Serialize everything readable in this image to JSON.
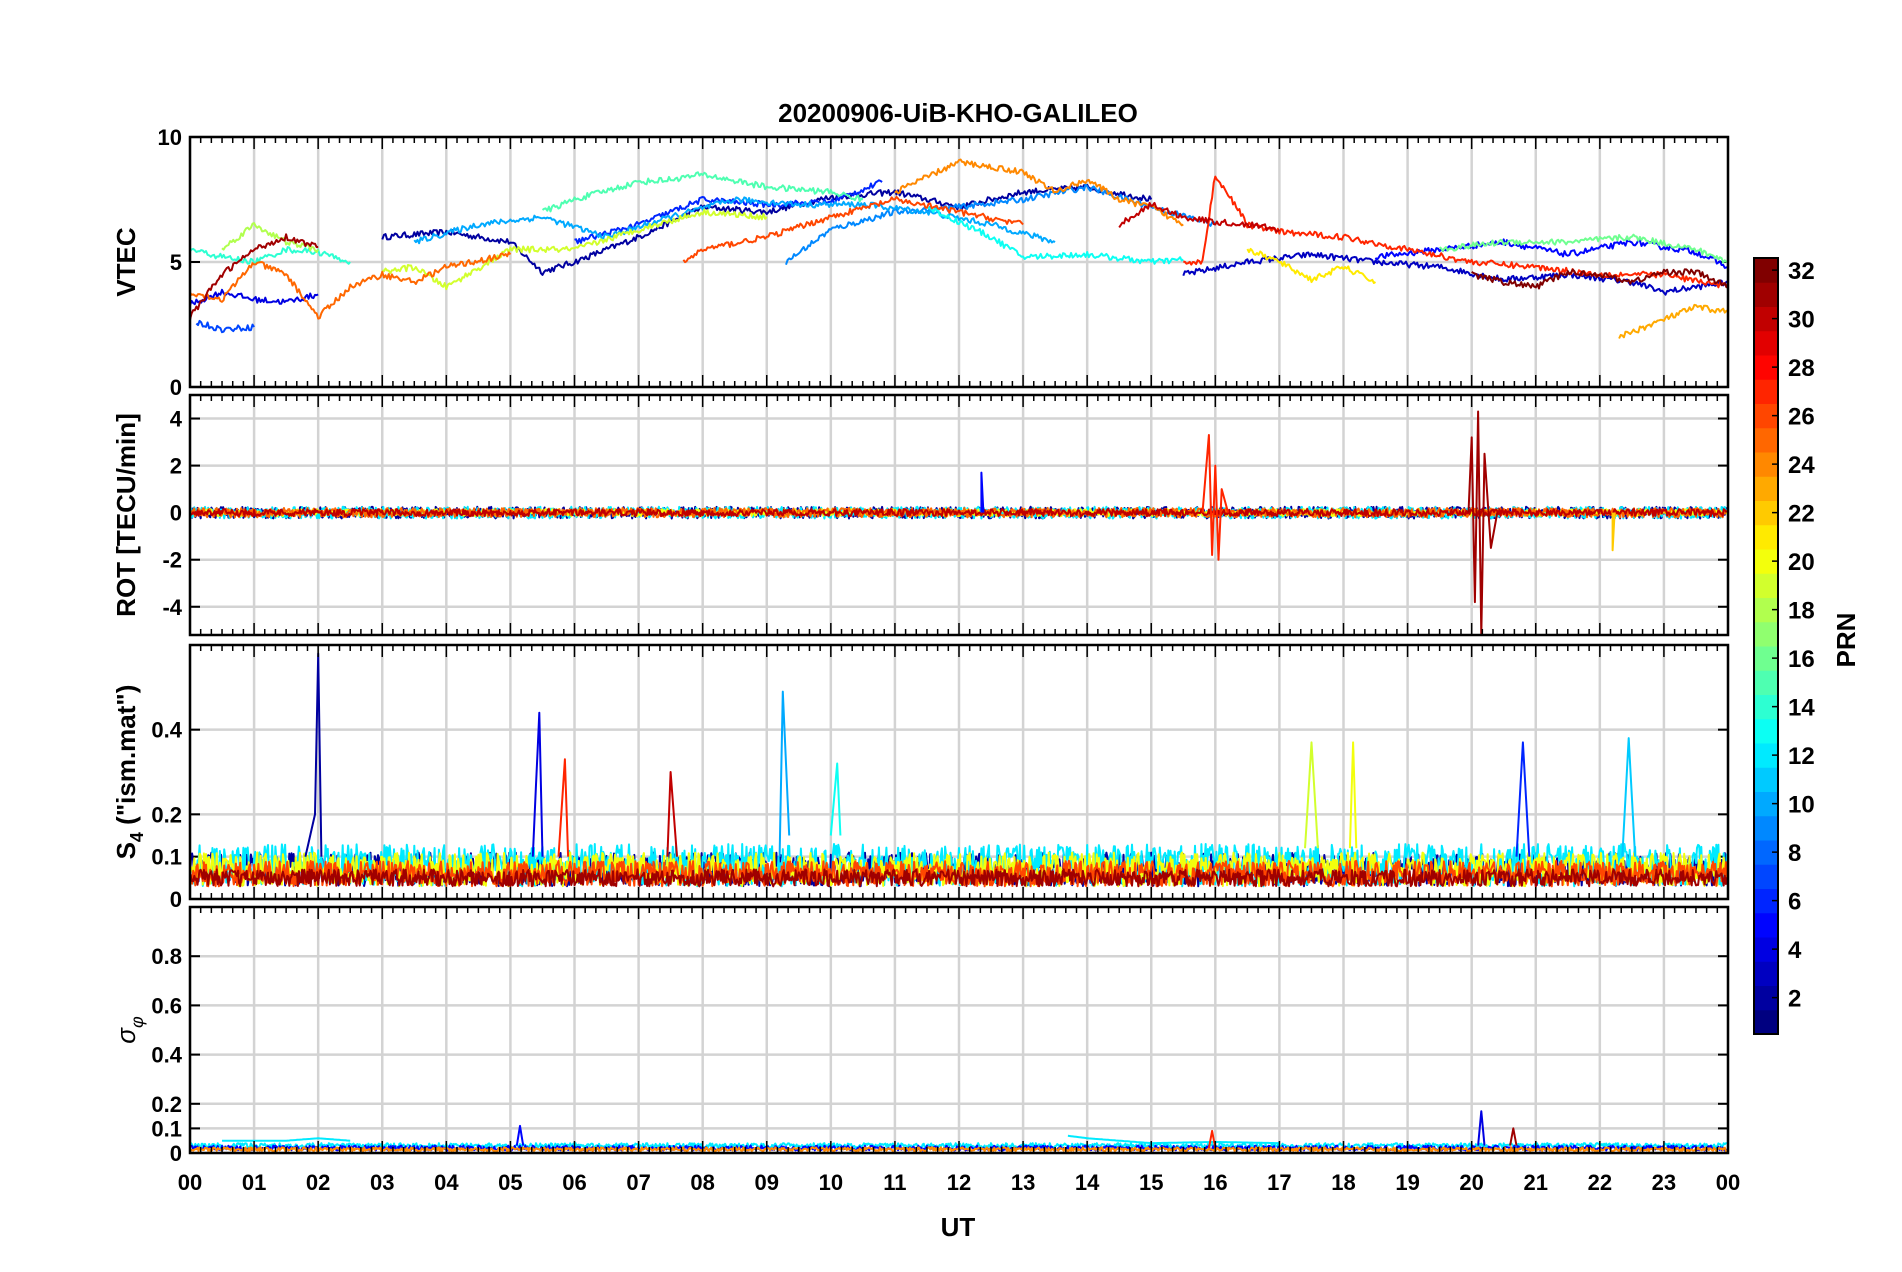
{
  "chart_data": {
    "type": "line",
    "title": "20200906-UiB-KHO-GALILEO",
    "xlabel": "UT",
    "x_range": [
      0,
      24
    ],
    "x_tick_labels": [
      "00",
      "01",
      "02",
      "03",
      "04",
      "05",
      "06",
      "07",
      "08",
      "09",
      "10",
      "11",
      "12",
      "13",
      "14",
      "15",
      "16",
      "17",
      "18",
      "19",
      "20",
      "21",
      "22",
      "23",
      "00"
    ],
    "grid": true,
    "colormap": "jet",
    "colorbar": {
      "label": "PRN",
      "range": [
        1,
        32
      ],
      "placement": "right",
      "tick_labels": [
        "2",
        "4",
        "6",
        "8",
        "10",
        "12",
        "14",
        "16",
        "18",
        "20",
        "22",
        "24",
        "26",
        "28",
        "30",
        "32"
      ]
    },
    "panels": [
      {
        "ylabel": "VTEC",
        "ylim": [
          0,
          10
        ],
        "y_tick_labels": [
          "0",
          "5",
          "10"
        ],
        "series": [
          {
            "prn": 2,
            "x": [
              3.0,
              4.0,
              5.0,
              5.5,
              6.0,
              7.0,
              8.0,
              9.0,
              10.0,
              11.0,
              12.0,
              13.0,
              14.0,
              15.0
            ],
            "y": [
              6.0,
              6.2,
              5.8,
              4.6,
              5.0,
              6.0,
              7.2,
              7.0,
              7.6,
              7.8,
              7.2,
              7.8,
              8.0,
              7.5
            ]
          },
          {
            "prn": 3,
            "x": [
              15.5,
              16.5,
              17.5,
              18.5,
              19.5,
              20.5,
              21.5,
              22.5,
              23.0,
              24.0
            ],
            "y": [
              4.5,
              5.0,
              5.3,
              5.0,
              4.8,
              4.3,
              4.5,
              4.2,
              3.8,
              4.2
            ]
          },
          {
            "prn": 4,
            "x": [
              0.0,
              0.5,
              1.0,
              1.5,
              2.0
            ],
            "y": [
              3.3,
              3.8,
              3.5,
              3.4,
              3.7
            ]
          },
          {
            "prn": 5,
            "x": [
              18.5,
              19.5,
              20.5,
              21.5,
              22.5,
              23.5,
              24.0
            ],
            "y": [
              5.2,
              5.5,
              5.8,
              5.3,
              5.8,
              5.4,
              4.8
            ]
          },
          {
            "prn": 6,
            "x": [
              6.0,
              7.0,
              8.0,
              9.0,
              10.0,
              10.8
            ],
            "y": [
              5.8,
              6.5,
              7.5,
              7.3,
              7.4,
              8.2
            ]
          },
          {
            "prn": 7,
            "x": [
              0.1,
              0.5,
              1.0
            ],
            "y": [
              2.6,
              2.3,
              2.4
            ]
          },
          {
            "prn": 9,
            "x": [
              9.3,
              10.0,
              11.0,
              12.0,
              13.0,
              14.0,
              15.0,
              16.0
            ],
            "y": [
              5.0,
              6.3,
              7.0,
              7.2,
              7.5,
              8.0,
              7.2,
              6.5
            ]
          },
          {
            "prn": 10,
            "x": [
              3.5,
              4.5,
              5.5,
              6.5,
              7.5,
              8.5,
              9.5,
              10.5,
              11.5,
              12.5,
              13.5
            ],
            "y": [
              5.8,
              6.5,
              6.8,
              6.0,
              6.8,
              7.5,
              7.3,
              7.3,
              7.0,
              6.5,
              5.8
            ]
          },
          {
            "prn": 13,
            "x": [
              11.5,
              12.5,
              13.0,
              14.0,
              15.0,
              15.5
            ],
            "y": [
              7.2,
              6.0,
              5.2,
              5.3,
              5.0,
              5.1
            ]
          },
          {
            "prn": 14,
            "x": [
              0.0,
              0.5,
              1.0,
              1.5,
              2.0,
              2.5
            ],
            "y": [
              5.5,
              5.2,
              5.0,
              5.5,
              5.4,
              5.0
            ]
          },
          {
            "prn": 15,
            "x": [
              5.5,
              6.0,
              7.0,
              7.5,
              8.0,
              9.0,
              10.0,
              10.5
            ],
            "y": [
              7.0,
              7.5,
              8.2,
              8.3,
              8.5,
              8.0,
              7.8,
              7.5
            ]
          },
          {
            "prn": 16,
            "x": [
              19.5,
              20.5,
              21.5,
              22.5,
              23.5,
              24.0
            ],
            "y": [
              5.5,
              5.8,
              5.8,
              6.0,
              5.5,
              5.0
            ]
          },
          {
            "prn": 18,
            "x": [
              0.5,
              1.0,
              1.5,
              2.0
            ],
            "y": [
              5.5,
              6.5,
              5.8,
              5.5
            ]
          },
          {
            "prn": 19,
            "x": [
              3.0,
              3.5,
              4.0,
              5.0,
              6.0,
              7.0,
              8.0,
              9.0
            ],
            "y": [
              4.6,
              4.8,
              4.0,
              5.5,
              5.5,
              6.3,
              7.0,
              6.8
            ]
          },
          {
            "prn": 21,
            "x": [
              16.5,
              17.0,
              17.5,
              18.0,
              18.5
            ],
            "y": [
              5.5,
              5.0,
              4.3,
              4.8,
              4.2
            ]
          },
          {
            "prn": 23,
            "x": [
              22.3,
              23.0,
              23.5,
              24.0
            ],
            "y": [
              2.0,
              2.7,
              3.2,
              3.0
            ]
          },
          {
            "prn": 24,
            "x": [
              11.0,
              12.0,
              12.5,
              13.0,
              13.5,
              14.0,
              14.5,
              15.0,
              15.5
            ],
            "y": [
              7.8,
              9.0,
              8.8,
              8.6,
              7.8,
              8.3,
              7.5,
              7.2,
              6.5
            ]
          },
          {
            "prn": 25,
            "x": [
              0.0,
              0.5,
              1.0,
              1.5,
              2.0,
              2.5,
              3.0,
              3.5,
              4.0,
              5.0
            ],
            "y": [
              3.8,
              3.5,
              5.0,
              4.5,
              2.8,
              4.0,
              4.5,
              4.2,
              4.8,
              5.3
            ]
          },
          {
            "prn": 26,
            "x": [
              7.7,
              8.0,
              9.0,
              10.0,
              11.0,
              12.0,
              13.0
            ],
            "y": [
              5.0,
              5.5,
              6.0,
              6.8,
              7.5,
              7.0,
              6.5
            ]
          },
          {
            "prn": 27,
            "x": [
              15.5,
              15.8,
              16.0,
              16.5,
              17.0,
              18.0,
              19.0,
              20.0,
              21.0,
              22.0,
              23.0,
              24.0
            ],
            "y": [
              5.0,
              5.0,
              8.5,
              6.5,
              6.2,
              6.0,
              5.5,
              5.0,
              4.8,
              4.5,
              4.5,
              4.0
            ]
          },
          {
            "prn": 30,
            "x": [
              14.5,
              15.0,
              15.5,
              16.0,
              16.5,
              17.0
            ],
            "y": [
              6.5,
              7.3,
              6.8,
              6.6,
              6.5,
              6.3
            ]
          },
          {
            "prn": 31,
            "x": [
              0.0,
              0.5,
              1.0,
              1.5,
              2.0
            ],
            "y": [
              2.8,
              4.5,
              5.5,
              6.0,
              5.6
            ]
          },
          {
            "prn": 32,
            "x": [
              20.0,
              20.5,
              21.0,
              21.5,
              22.0,
              22.5,
              23.0,
              23.5,
              24.0
            ],
            "y": [
              4.5,
              4.2,
              4.0,
              4.6,
              4.5,
              4.2,
              4.6,
              4.6,
              4.0
            ]
          }
        ]
      },
      {
        "ylabel": "ROT [TECU/min]",
        "ylim": [
          -5.2,
          5
        ],
        "y_tick_labels": [
          "-4",
          "-2",
          "0",
          "2",
          "4"
        ],
        "series": [
          {
            "prn": 2,
            "x": [
              0.0,
              24.0
            ],
            "y": [
              0.0,
              0.0
            ],
            "noise": 0.25
          },
          {
            "prn": 12,
            "x": [
              0.0,
              24.0
            ],
            "y": [
              0.0,
              0.0
            ],
            "noise": 0.25
          },
          {
            "prn": 20,
            "x": [
              0.0,
              24.0
            ],
            "y": [
              0.0,
              0.0
            ],
            "noise": 0.15
          },
          {
            "prn": 25,
            "x": [
              0.0,
              24.0
            ],
            "y": [
              0.0,
              0.0
            ],
            "noise": 0.2
          },
          {
            "prn": 30,
            "x": [
              0.0,
              24.0
            ],
            "y": [
              0.0,
              0.0
            ],
            "noise": 0.15
          },
          {
            "prn": 27,
            "x": [
              15.8,
              15.9,
              15.95,
              16.0,
              16.05,
              16.1,
              16.2
            ],
            "y": [
              0.0,
              3.3,
              -1.8,
              2.0,
              -2.0,
              1.0,
              0.0
            ]
          },
          {
            "prn": 31,
            "x": [
              19.95,
              20.0,
              20.05,
              20.1,
              20.15,
              20.2,
              20.3,
              20.4
            ],
            "y": [
              0.0,
              3.2,
              -3.8,
              4.3,
              -5.2,
              2.5,
              -1.5,
              0.0
            ]
          },
          {
            "prn": 5,
            "x": [
              12.35
            ],
            "y": [
              1.7
            ]
          },
          {
            "prn": 22,
            "x": [
              22.2
            ],
            "y": [
              -1.6
            ]
          }
        ]
      },
      {
        "ylabel": "S4 (\"ism.mat\")",
        "ylabel_main": "S",
        "ylabel_sub": "4",
        "ylabel_rest": " (\"ism.mat\")",
        "ylim": [
          0,
          0.6
        ],
        "y_tick_labels": [
          "0",
          "0.1",
          "0.2",
          "0.4"
        ],
        "series": [
          {
            "prn": 2,
            "x": [
              0.0,
              24.0
            ],
            "y": [
              0.07,
              0.07
            ],
            "noise": 0.04
          },
          {
            "prn": 12,
            "x": [
              0.0,
              24.0
            ],
            "y": [
              0.08,
              0.08
            ],
            "noise": 0.05
          },
          {
            "prn": 20,
            "x": [
              0.0,
              24.0
            ],
            "y": [
              0.07,
              0.07
            ],
            "noise": 0.04
          },
          {
            "prn": 26,
            "x": [
              0.0,
              24.0
            ],
            "y": [
              0.06,
              0.06
            ],
            "noise": 0.03
          },
          {
            "prn": 31,
            "x": [
              0.0,
              24.0
            ],
            "y": [
              0.05,
              0.05
            ],
            "noise": 0.02
          },
          {
            "prn": 2,
            "x": [
              1.8,
              1.95,
              2.0,
              2.05
            ],
            "y": [
              0.1,
              0.2,
              0.58,
              0.1
            ]
          },
          {
            "prn": 4,
            "x": [
              5.35,
              5.45,
              5.5
            ],
            "y": [
              0.1,
              0.44,
              0.1
            ]
          },
          {
            "prn": 27,
            "x": [
              5.75,
              5.85,
              5.9
            ],
            "y": [
              0.1,
              0.33,
              0.1
            ]
          },
          {
            "prn": 10,
            "x": [
              9.2,
              9.25,
              9.35
            ],
            "y": [
              0.1,
              0.49,
              0.15
            ]
          },
          {
            "prn": 19,
            "x": [
              17.4,
              17.5,
              17.6
            ],
            "y": [
              0.12,
              0.37,
              0.12
            ]
          },
          {
            "prn": 20,
            "x": [
              18.1,
              18.15,
              18.2
            ],
            "y": [
              0.12,
              0.37,
              0.12
            ]
          },
          {
            "prn": 6,
            "x": [
              20.7,
              20.8,
              20.9
            ],
            "y": [
              0.1,
              0.37,
              0.1
            ]
          },
          {
            "prn": 11,
            "x": [
              22.35,
              22.45,
              22.55
            ],
            "y": [
              0.1,
              0.38,
              0.1
            ]
          },
          {
            "prn": 30,
            "x": [
              7.45,
              7.5,
              7.6
            ],
            "y": [
              0.1,
              0.3,
              0.1
            ]
          },
          {
            "prn": 13,
            "x": [
              10.0,
              10.1,
              10.15
            ],
            "y": [
              0.15,
              0.32,
              0.15
            ]
          }
        ]
      },
      {
        "ylabel": "σφ",
        "ylabel_main": "σ",
        "ylabel_sub": "φ",
        "ylim": [
          0,
          1
        ],
        "y_tick_labels": [
          "0",
          "0.1",
          "0.2",
          "0.4",
          "0.6",
          "0.8"
        ],
        "series": [
          {
            "prn": 12,
            "x": [
              0.0,
              24.0
            ],
            "y": [
              0.03,
              0.03
            ],
            "noise": 0.01
          },
          {
            "prn": 5,
            "x": [
              0.0,
              24.0
            ],
            "y": [
              0.02,
              0.02
            ],
            "noise": 0.01
          },
          {
            "prn": 24,
            "x": [
              0.0,
              24.0
            ],
            "y": [
              0.015,
              0.015
            ],
            "noise": 0.008
          },
          {
            "prn": 12,
            "x": [
              0.5,
              1.0,
              1.5,
              2.0,
              2.5
            ],
            "y": [
              0.05,
              0.05,
              0.05,
              0.06,
              0.05
            ]
          },
          {
            "prn": 12,
            "x": [
              13.7,
              14.0,
              14.5,
              15.0,
              16.0,
              17.0
            ],
            "y": [
              0.07,
              0.06,
              0.05,
              0.04,
              0.045,
              0.04
            ]
          },
          {
            "prn": 5,
            "x": [
              5.1,
              5.15,
              5.2
            ],
            "y": [
              0.03,
              0.11,
              0.03
            ]
          },
          {
            "prn": 27,
            "x": [
              15.9,
              15.95,
              16.0
            ],
            "y": [
              0.02,
              0.09,
              0.02
            ]
          },
          {
            "prn": 4,
            "x": [
              20.1,
              20.15,
              20.2
            ],
            "y": [
              0.03,
              0.17,
              0.03
            ]
          },
          {
            "prn": 31,
            "x": [
              20.6,
              20.65,
              20.7
            ],
            "y": [
              0.03,
              0.1,
              0.03
            ]
          }
        ]
      }
    ]
  }
}
